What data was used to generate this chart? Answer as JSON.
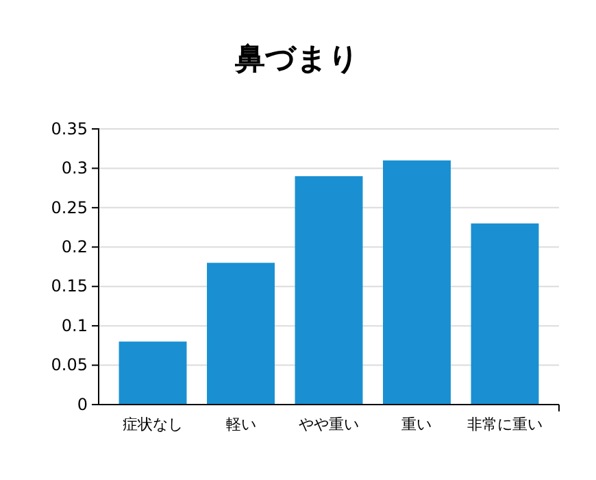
{
  "chart_data": {
    "type": "bar",
    "title": "鼻づまり",
    "categories": [
      "症状なし",
      "軽い",
      "やや重い",
      "重い",
      "非常に重い"
    ],
    "values": [
      0.08,
      0.18,
      0.29,
      0.31,
      0.23
    ],
    "color": "#1a90d2",
    "ylim": [
      0,
      0.35
    ],
    "yticks": [
      0,
      0.05,
      0.1,
      0.15,
      0.2,
      0.25,
      0.3,
      0.35
    ],
    "grid": "y"
  }
}
